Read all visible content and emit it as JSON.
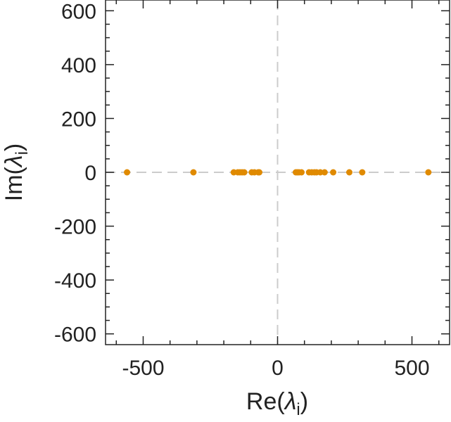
{
  "chart_data": {
    "type": "scatter",
    "title": "",
    "xlabel": "Re(λi)",
    "ylabel": "Im(λi)",
    "xlabel_parts": {
      "prefix": "Re(",
      "symbol": "λ",
      "sub": "i",
      "suffix": ")"
    },
    "ylabel_parts": {
      "prefix": "Im(",
      "symbol": "λ",
      "sub": "i",
      "suffix": ")"
    },
    "xlim": [
      -640,
      640
    ],
    "ylim": [
      -640,
      640
    ],
    "x_ticks": [
      -500,
      0,
      500
    ],
    "x_tick_labels": [
      "-500",
      "0",
      "500"
    ],
    "y_ticks": [
      -600,
      -400,
      -200,
      0,
      200,
      400,
      600
    ],
    "y_tick_labels": [
      "-600",
      "-400",
      "-200",
      "0",
      "200",
      "400",
      "600"
    ],
    "grid": false,
    "zero_lines": true,
    "colors": {
      "points": "#e08a00",
      "axes": "#222222",
      "zero_line": "#cccccc"
    },
    "series": [
      {
        "x": [
          -560,
          -313,
          -163,
          -148,
          -140,
          -132,
          -124,
          -96,
          -86,
          -72,
          -68,
          68,
          74,
          80,
          89,
          117,
          127,
          137,
          145,
          159,
          175,
          207,
          267,
          315,
          561
        ],
        "y": [
          0,
          0,
          0,
          0,
          0,
          0,
          0,
          0,
          0,
          0,
          0,
          0,
          0,
          0,
          0,
          0,
          0,
          0,
          0,
          0,
          0,
          0,
          0,
          0,
          0
        ]
      }
    ]
  }
}
